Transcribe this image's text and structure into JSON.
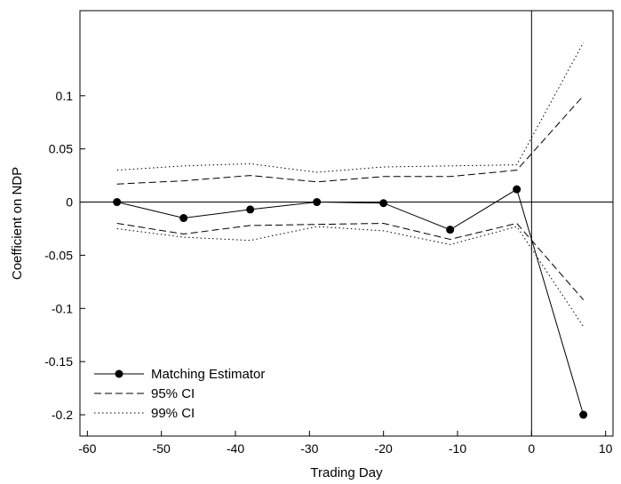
{
  "chart_data": {
    "type": "line",
    "xlabel": "Trading Day",
    "ylabel": "Coefficient on NDP",
    "xlim": [
      -61,
      11
    ],
    "ylim": [
      -0.22,
      0.18
    ],
    "xticks": [
      -60,
      -50,
      -40,
      -30,
      -20,
      -10,
      0,
      10
    ],
    "xtick_labels": [
      "-60",
      "-50",
      "-40",
      "-30",
      "-20",
      "-10",
      "0",
      "10"
    ],
    "yticks": [
      -0.2,
      -0.15,
      -0.1,
      -0.05,
      0,
      0.05,
      0.1
    ],
    "ytick_labels": [
      "-0.2",
      "-0.15",
      "-0.1",
      "-0.05",
      "0",
      "0.05",
      "0.1"
    ],
    "grid": false,
    "legend_position": "bottom-left",
    "reference_lines": {
      "x": 0,
      "y": 0
    },
    "series": [
      {
        "name": "Matching Estimator",
        "style": "solid-markers",
        "color": "#000000",
        "x": [
          -56,
          -47,
          -38,
          -29,
          -20,
          -11,
          -2,
          7
        ],
        "y": [
          0.0,
          -0.015,
          -0.007,
          0.0,
          -0.001,
          -0.026,
          0.012,
          -0.2
        ]
      },
      {
        "name": "95% CI",
        "style": "dashed",
        "color": "#000000",
        "upper": {
          "x": [
            -56,
            -47,
            -38,
            -29,
            -20,
            -11,
            -2,
            7
          ],
          "y": [
            0.017,
            0.02,
            0.025,
            0.019,
            0.024,
            0.024,
            0.03,
            0.1
          ]
        },
        "lower": {
          "x": [
            -56,
            -47,
            -38,
            -29,
            -20,
            -11,
            -2,
            7
          ],
          "y": [
            -0.02,
            -0.03,
            -0.022,
            -0.021,
            -0.02,
            -0.035,
            -0.02,
            -0.092
          ]
        }
      },
      {
        "name": "99% CI",
        "style": "dotted",
        "color": "#000000",
        "upper": {
          "x": [
            -56,
            -47,
            -38,
            -29,
            -20,
            -11,
            -2,
            7
          ],
          "y": [
            0.03,
            0.034,
            0.036,
            0.028,
            0.033,
            0.034,
            0.035,
            0.15
          ]
        },
        "lower": {
          "x": [
            -56,
            -47,
            -38,
            -29,
            -20,
            -11,
            -2,
            7
          ],
          "y": [
            -0.025,
            -0.033,
            -0.036,
            -0.023,
            -0.027,
            -0.04,
            -0.023,
            -0.117
          ]
        }
      }
    ]
  }
}
